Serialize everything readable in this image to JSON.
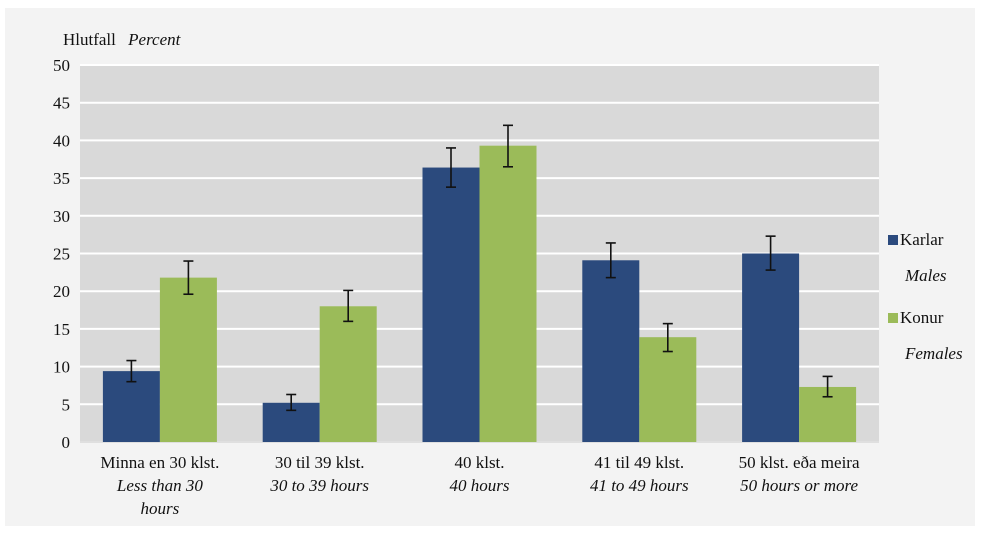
{
  "chart_data": {
    "type": "bar",
    "ylabel": "Hlutfall",
    "ylabel_en": "Percent",
    "ylim": [
      0,
      50
    ],
    "yticks": [
      0,
      5,
      10,
      15,
      20,
      25,
      30,
      35,
      40,
      45,
      50
    ],
    "grid": true,
    "legend_position": "right",
    "categories": [
      {
        "label": "Minna en 30 klst.",
        "label_en": [
          "Less than 30",
          "hours"
        ]
      },
      {
        "label": "30 til 39 klst.",
        "label_en": [
          "30 to 39 hours"
        ]
      },
      {
        "label": "40 klst.",
        "label_en": [
          "40 hours"
        ]
      },
      {
        "label": "41 til 49 klst.",
        "label_en": [
          "41 to 49 hours"
        ]
      },
      {
        "label": "50 klst. eða meira",
        "label_en": [
          "50 hours or more"
        ]
      }
    ],
    "series": [
      {
        "name": "Karlar",
        "name_en": "Males",
        "color": "#2b4a7d",
        "values": [
          9.4,
          5.2,
          36.4,
          24.1,
          25.0
        ],
        "error_low": [
          8.0,
          4.2,
          33.8,
          21.8,
          22.8
        ],
        "error_high": [
          10.8,
          6.3,
          39.0,
          26.4,
          27.3
        ]
      },
      {
        "name": "Konur",
        "name_en": "Females",
        "color": "#9bbb59",
        "values": [
          21.8,
          18.0,
          39.3,
          13.9,
          7.3
        ],
        "error_low": [
          19.6,
          16.0,
          36.5,
          12.0,
          6.0
        ],
        "error_high": [
          24.0,
          20.1,
          42.0,
          15.7,
          8.7
        ]
      }
    ]
  }
}
